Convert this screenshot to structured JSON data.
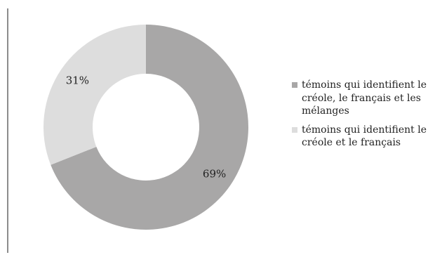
{
  "chart_data": {
    "type": "pie",
    "variant": "donut",
    "title": "",
    "categories": [
      "témoins qui identifient le créole, le français et les mélanges",
      "témoins qui identifient le créole et le français"
    ],
    "values": [
      69,
      31
    ],
    "value_labels": [
      "69%",
      "31%"
    ],
    "colors": [
      "#a8a7a7",
      "#dddddd"
    ],
    "legend_position": "right"
  },
  "legend": [
    {
      "label": "témoins qui identifient le créole, le français et les mélanges",
      "color": "#a8a7a7"
    },
    {
      "label": "témoins qui identifient le créole et le français",
      "color": "#dddddd"
    }
  ]
}
